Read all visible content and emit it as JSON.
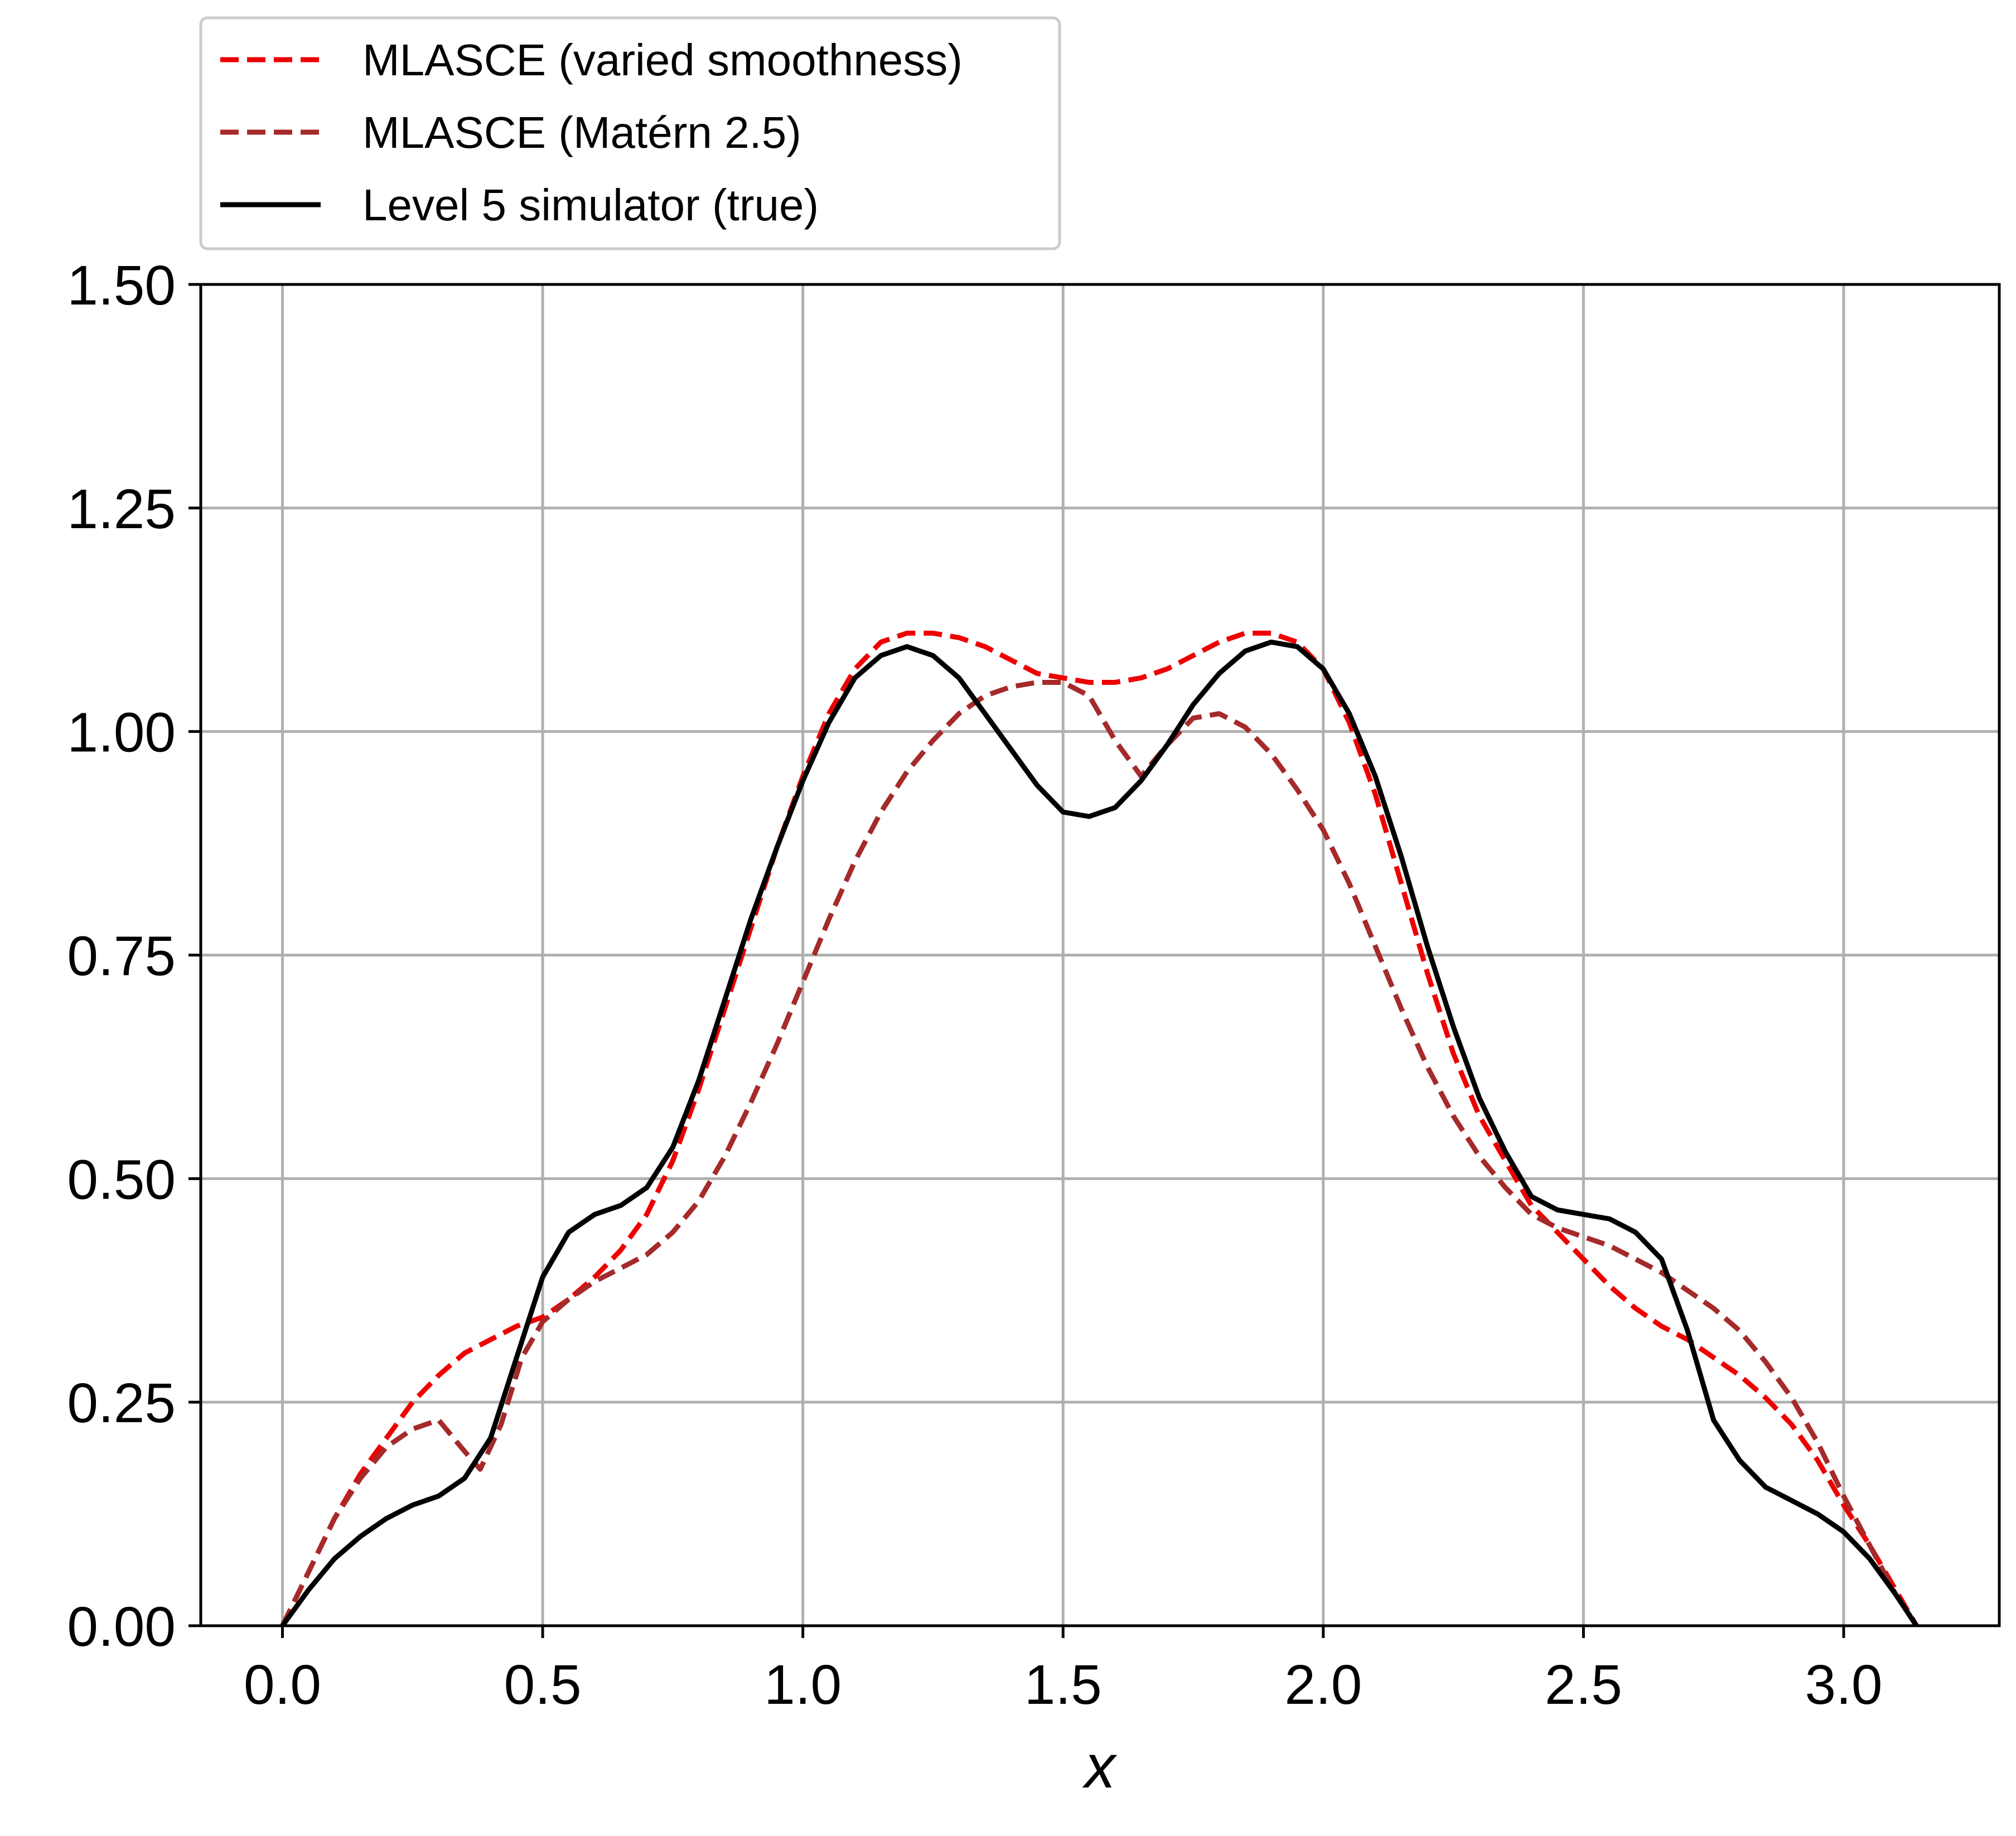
{
  "chart_data": {
    "type": "line",
    "title": "",
    "xlabel": "x",
    "ylabel": "",
    "xlim": [
      -0.157,
      3.299
    ],
    "ylim": [
      0,
      1.5
    ],
    "xticks": [
      0.0,
      0.5,
      1.0,
      1.5,
      2.0,
      2.5,
      3.0
    ],
    "xtick_labels": [
      "0.0",
      "0.5",
      "1.0",
      "1.5",
      "2.0",
      "2.5",
      "3.0"
    ],
    "yticks": [
      0.0,
      0.25,
      0.5,
      0.75,
      1.0,
      1.25,
      1.5
    ],
    "ytick_labels": [
      "0.00",
      "0.25",
      "0.50",
      "0.75",
      "1.00",
      "1.25",
      "1.50"
    ],
    "grid": true,
    "legend_position": "above-left",
    "series": [
      {
        "name": "MLASCE (varied smoothness)",
        "color": "#ee0000",
        "dash": "dashed",
        "x": [
          0.0,
          0.05,
          0.1,
          0.15,
          0.2,
          0.25,
          0.3,
          0.35,
          0.4,
          0.45,
          0.5,
          0.55,
          0.6,
          0.65,
          0.7,
          0.75,
          0.8,
          0.85,
          0.9,
          0.95,
          1.0,
          1.05,
          1.1,
          1.15,
          1.2,
          1.25,
          1.3,
          1.35,
          1.4,
          1.45,
          1.5,
          1.55,
          1.6,
          1.65,
          1.7,
          1.75,
          1.8,
          1.85,
          1.9,
          1.95,
          2.0,
          2.05,
          2.1,
          2.15,
          2.2,
          2.25,
          2.3,
          2.35,
          2.4,
          2.45,
          2.5,
          2.55,
          2.6,
          2.65,
          2.7,
          2.75,
          2.8,
          2.85,
          2.9,
          2.95,
          3.0,
          3.05,
          3.1,
          3.14
        ],
        "values": [
          0.0,
          0.06,
          0.12,
          0.17,
          0.21,
          0.25,
          0.28,
          0.305,
          0.32,
          0.335,
          0.345,
          0.365,
          0.39,
          0.42,
          0.46,
          0.52,
          0.6,
          0.69,
          0.78,
          0.87,
          0.95,
          1.02,
          1.07,
          1.1,
          1.11,
          1.11,
          1.105,
          1.095,
          1.08,
          1.065,
          1.06,
          1.055,
          1.055,
          1.06,
          1.07,
          1.085,
          1.1,
          1.11,
          1.11,
          1.1,
          1.07,
          1.01,
          0.93,
          0.83,
          0.73,
          0.64,
          0.57,
          0.52,
          0.47,
          0.44,
          0.41,
          0.38,
          0.355,
          0.335,
          0.32,
          0.3,
          0.28,
          0.255,
          0.225,
          0.185,
          0.135,
          0.09,
          0.04,
          0.0
        ]
      },
      {
        "name": "MLASCE (Matérn 2.5)",
        "color": "#a52a2a",
        "dash": "dashed",
        "x": [
          0.0,
          0.05,
          0.1,
          0.15,
          0.2,
          0.25,
          0.3,
          0.35,
          0.38,
          0.42,
          0.46,
          0.5,
          0.55,
          0.6,
          0.65,
          0.7,
          0.75,
          0.8,
          0.85,
          0.9,
          0.95,
          1.0,
          1.05,
          1.1,
          1.15,
          1.2,
          1.25,
          1.3,
          1.35,
          1.4,
          1.45,
          1.5,
          1.55,
          1.6,
          1.65,
          1.7,
          1.75,
          1.8,
          1.85,
          1.9,
          1.95,
          2.0,
          2.05,
          2.1,
          2.15,
          2.2,
          2.25,
          2.3,
          2.35,
          2.4,
          2.45,
          2.5,
          2.55,
          2.6,
          2.65,
          2.7,
          2.75,
          2.8,
          2.85,
          2.9,
          2.95,
          3.0,
          3.05,
          3.1,
          3.14
        ],
        "values": [
          0.0,
          0.06,
          0.12,
          0.165,
          0.2,
          0.22,
          0.23,
          0.195,
          0.175,
          0.225,
          0.3,
          0.34,
          0.365,
          0.385,
          0.4,
          0.415,
          0.44,
          0.475,
          0.525,
          0.585,
          0.65,
          0.72,
          0.79,
          0.855,
          0.91,
          0.955,
          0.99,
          1.02,
          1.04,
          1.05,
          1.055,
          1.055,
          1.04,
          0.99,
          0.95,
          0.985,
          1.015,
          1.02,
          1.005,
          0.975,
          0.935,
          0.89,
          0.83,
          0.76,
          0.69,
          0.625,
          0.57,
          0.525,
          0.49,
          0.46,
          0.445,
          0.435,
          0.425,
          0.41,
          0.395,
          0.375,
          0.355,
          0.33,
          0.295,
          0.255,
          0.205,
          0.145,
          0.09,
          0.035,
          0.0
        ]
      },
      {
        "name": "Level 5 simulator (true)",
        "color": "#000000",
        "dash": "solid",
        "x": [
          0.0,
          0.05,
          0.1,
          0.15,
          0.2,
          0.25,
          0.3,
          0.35,
          0.4,
          0.45,
          0.5,
          0.55,
          0.6,
          0.65,
          0.7,
          0.75,
          0.8,
          0.85,
          0.9,
          0.95,
          1.0,
          1.05,
          1.1,
          1.15,
          1.2,
          1.25,
          1.3,
          1.35,
          1.4,
          1.45,
          1.5,
          1.55,
          1.6,
          1.65,
          1.7,
          1.75,
          1.8,
          1.85,
          1.9,
          1.95,
          2.0,
          2.05,
          2.1,
          2.15,
          2.2,
          2.25,
          2.3,
          2.35,
          2.4,
          2.45,
          2.5,
          2.55,
          2.6,
          2.65,
          2.7,
          2.75,
          2.8,
          2.85,
          2.9,
          2.95,
          3.0,
          3.05,
          3.1,
          3.14
        ],
        "values": [
          0.0,
          0.04,
          0.075,
          0.1,
          0.12,
          0.135,
          0.145,
          0.165,
          0.21,
          0.3,
          0.39,
          0.44,
          0.46,
          0.47,
          0.49,
          0.535,
          0.61,
          0.7,
          0.79,
          0.87,
          0.945,
          1.01,
          1.06,
          1.085,
          1.095,
          1.085,
          1.06,
          1.02,
          0.98,
          0.94,
          0.91,
          0.905,
          0.915,
          0.945,
          0.985,
          1.03,
          1.065,
          1.09,
          1.1,
          1.095,
          1.07,
          1.02,
          0.95,
          0.86,
          0.76,
          0.67,
          0.59,
          0.53,
          0.48,
          0.465,
          0.46,
          0.455,
          0.44,
          0.41,
          0.33,
          0.23,
          0.185,
          0.155,
          0.14,
          0.125,
          0.105,
          0.075,
          0.035,
          0.0
        ]
      }
    ]
  }
}
